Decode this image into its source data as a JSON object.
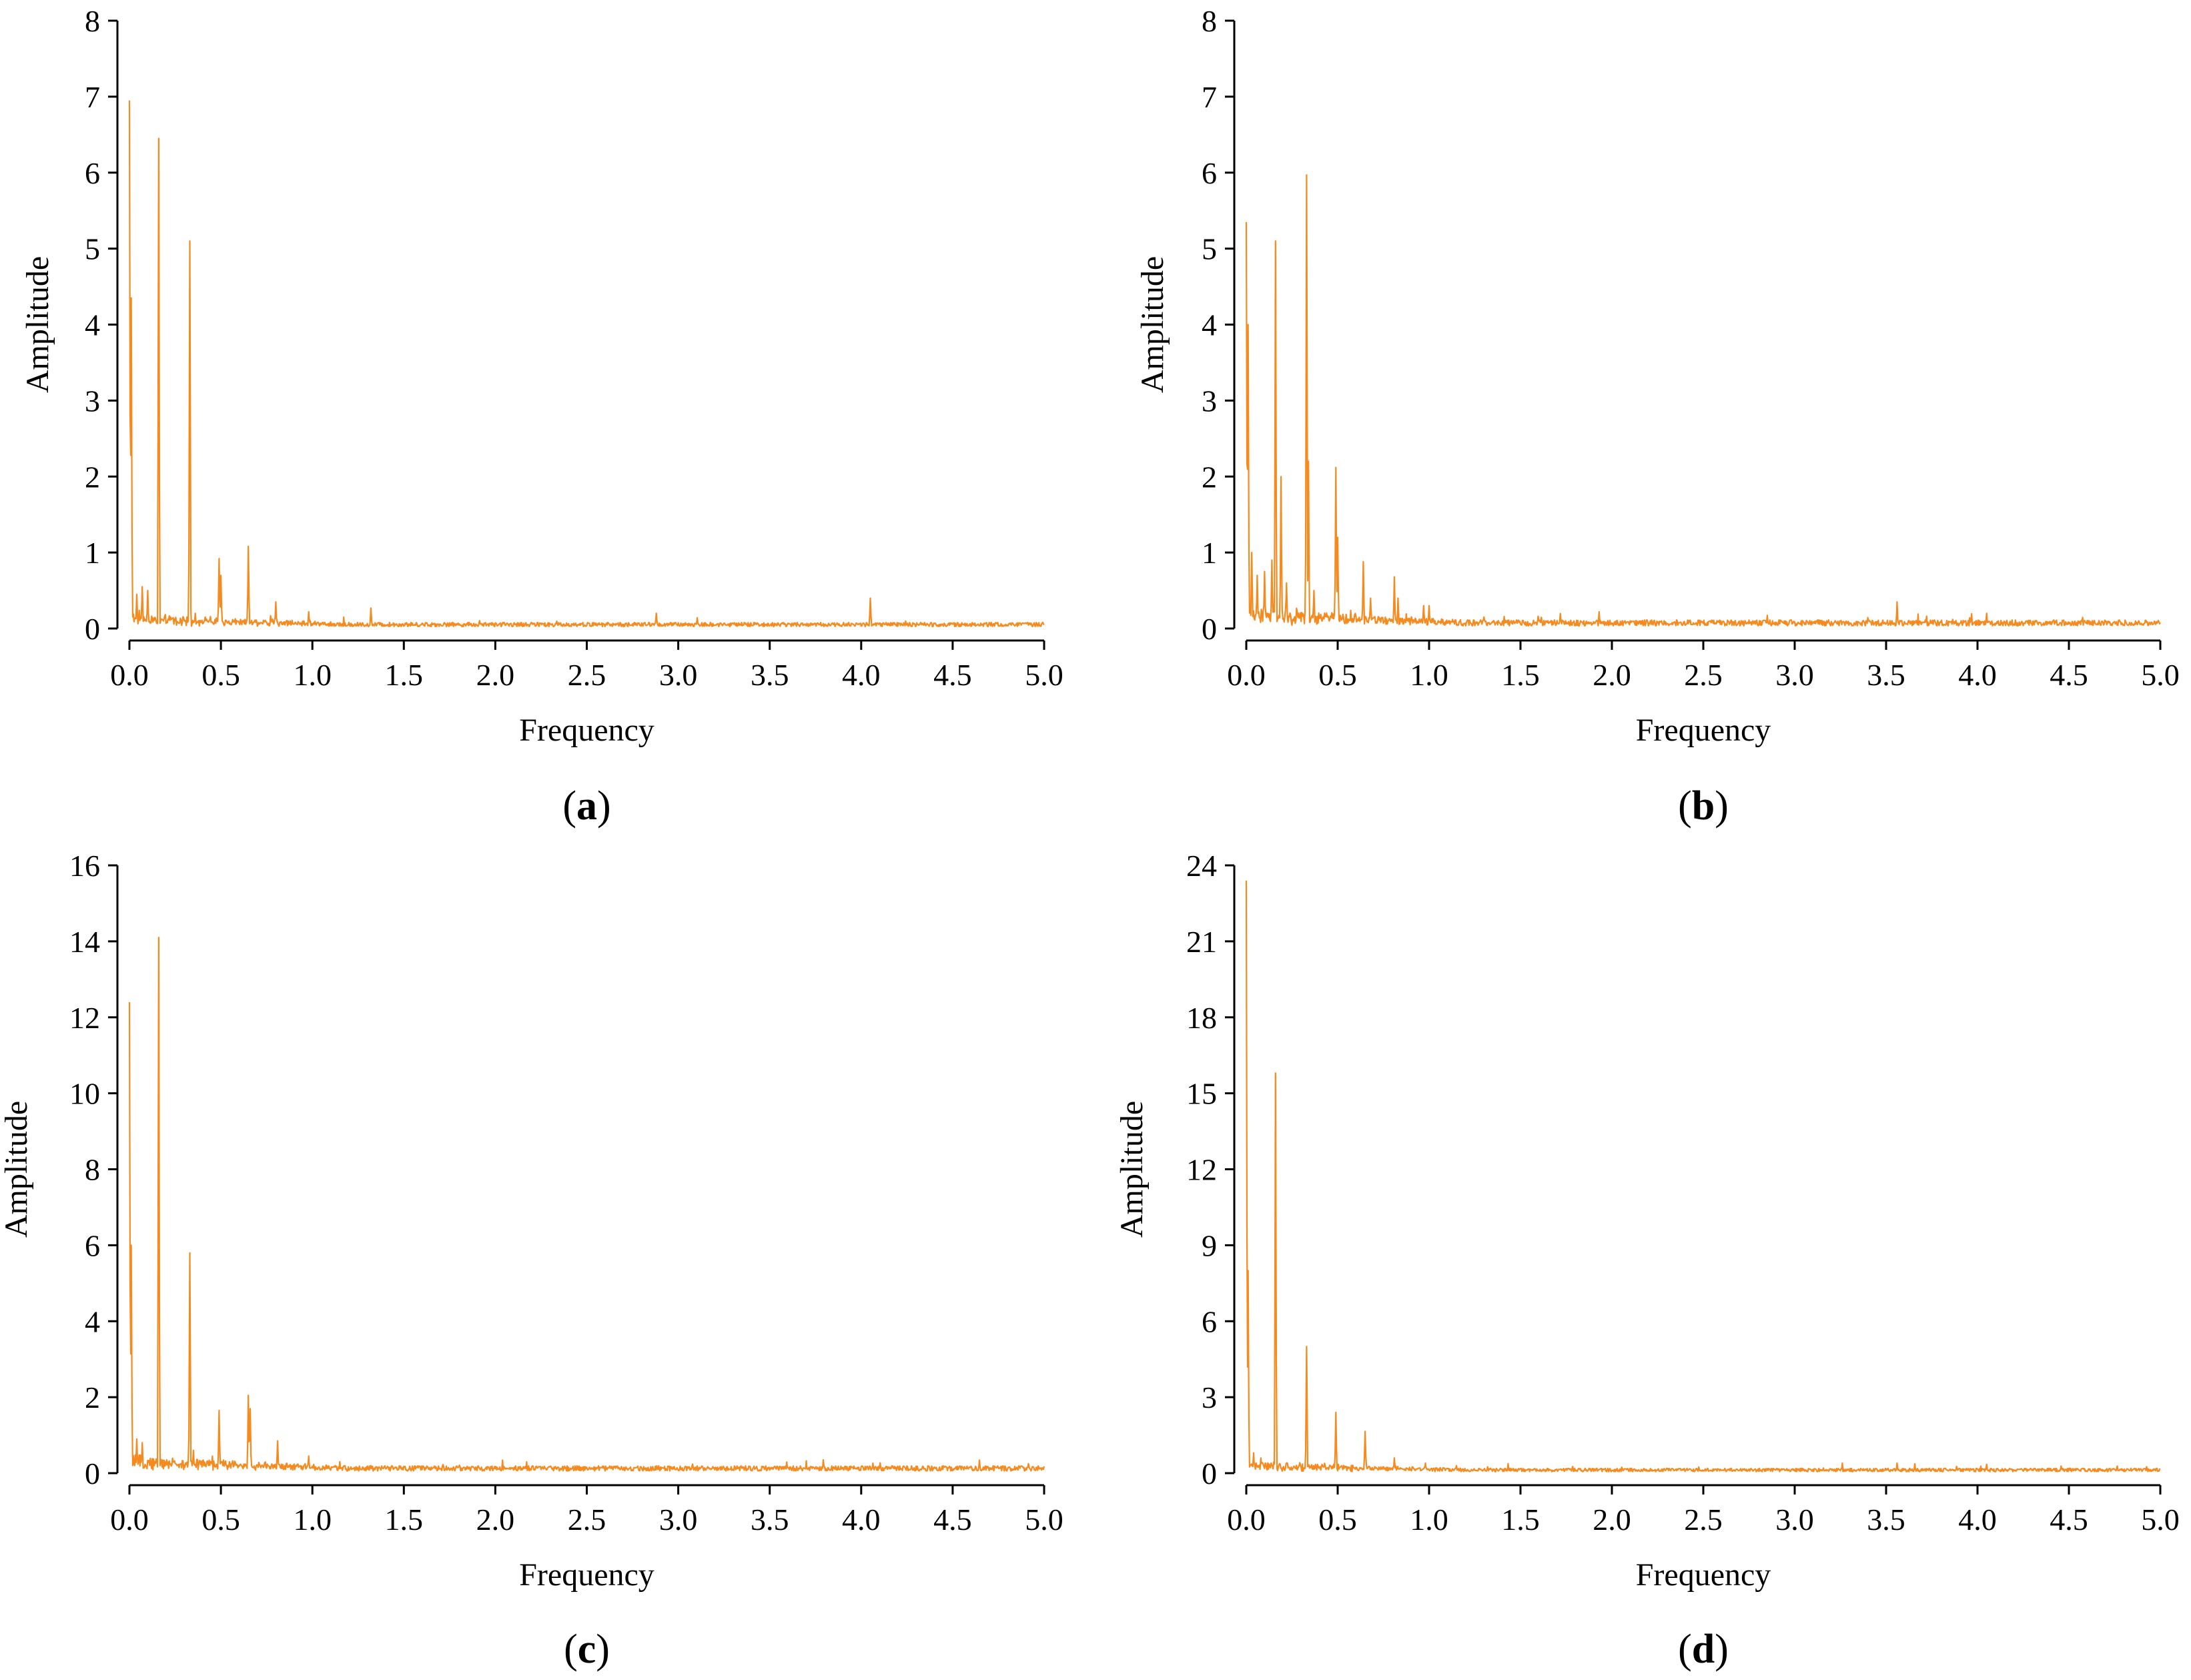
{
  "colors": {
    "series": "#f58a1f",
    "axis": "#000000"
  },
  "chart_data": [
    {
      "type": "line",
      "caption": "a",
      "xlabel": "Frequency",
      "ylabel": "Amplitude",
      "xlim": [
        0,
        5.0
      ],
      "ylim": [
        0,
        8
      ],
      "xticks": [
        "0.0",
        "0.5",
        "1.0",
        "1.5",
        "2.0",
        "2.5",
        "3.0",
        "3.5",
        "4.0",
        "4.5",
        "5.0"
      ],
      "yticks": [
        "0",
        "1",
        "2",
        "3",
        "4",
        "5",
        "6",
        "7",
        "8"
      ],
      "series": [
        {
          "baseline": 0.05,
          "peaks": [
            [
              0.0,
              6.95
            ],
            [
              0.01,
              4.35
            ],
            [
              0.04,
              0.45
            ],
            [
              0.07,
              0.55
            ],
            [
              0.1,
              0.5
            ],
            [
              0.16,
              6.45
            ],
            [
              0.33,
              5.1
            ],
            [
              0.36,
              0.2
            ],
            [
              0.49,
              0.92
            ],
            [
              0.5,
              0.7
            ],
            [
              0.65,
              1.08
            ],
            [
              0.8,
              0.35
            ],
            [
              0.98,
              0.22
            ],
            [
              1.32,
              0.27
            ],
            [
              2.88,
              0.2
            ],
            [
              4.05,
              0.4
            ]
          ]
        }
      ]
    },
    {
      "type": "line",
      "caption": "b",
      "xlabel": "Frequency",
      "ylabel": "Amplitude",
      "xlim": [
        0,
        5.0
      ],
      "ylim": [
        0,
        8
      ],
      "xticks": [
        "0.0",
        "0.5",
        "1.0",
        "1.5",
        "2.0",
        "2.5",
        "3.0",
        "3.5",
        "4.0",
        "4.5",
        "5.0"
      ],
      "yticks": [
        "0",
        "1",
        "2",
        "3",
        "4",
        "5",
        "6",
        "7",
        "8"
      ],
      "series": [
        {
          "baseline": 0.07,
          "peaks": [
            [
              0.0,
              5.35
            ],
            [
              0.01,
              4.0
            ],
            [
              0.03,
              1.0
            ],
            [
              0.06,
              0.7
            ],
            [
              0.1,
              0.75
            ],
            [
              0.14,
              0.9
            ],
            [
              0.16,
              5.1
            ],
            [
              0.19,
              2.0
            ],
            [
              0.22,
              0.6
            ],
            [
              0.33,
              5.97
            ],
            [
              0.34,
              2.2
            ],
            [
              0.37,
              0.5
            ],
            [
              0.49,
              2.12
            ],
            [
              0.5,
              1.2
            ],
            [
              0.64,
              0.88
            ],
            [
              0.68,
              0.4
            ],
            [
              0.81,
              0.68
            ],
            [
              0.83,
              0.4
            ],
            [
              0.97,
              0.3
            ],
            [
              1.0,
              0.3
            ],
            [
              1.3,
              0.15
            ],
            [
              1.93,
              0.22
            ],
            [
              3.56,
              0.35
            ],
            [
              4.05,
              0.2
            ]
          ]
        }
      ]
    },
    {
      "type": "line",
      "caption": "c",
      "xlabel": "Frequency",
      "ylabel": "Amplitude",
      "xlim": [
        0,
        5.0
      ],
      "ylim": [
        0,
        16
      ],
      "xticks": [
        "0.0",
        "0.5",
        "1.0",
        "1.5",
        "2.0",
        "2.5",
        "3.0",
        "3.5",
        "4.0",
        "4.5",
        "5.0"
      ],
      "yticks": [
        "0",
        "2",
        "4",
        "6",
        "8",
        "10",
        "12",
        "14",
        "16"
      ],
      "series": [
        {
          "baseline": 0.12,
          "peaks": [
            [
              0.0,
              12.4
            ],
            [
              0.01,
              6.0
            ],
            [
              0.04,
              0.9
            ],
            [
              0.07,
              0.8
            ],
            [
              0.16,
              14.1
            ],
            [
              0.33,
              5.8
            ],
            [
              0.35,
              0.6
            ],
            [
              0.49,
              1.65
            ],
            [
              0.65,
              2.05
            ],
            [
              0.66,
              1.7
            ],
            [
              0.81,
              0.85
            ],
            [
              0.98,
              0.45
            ],
            [
              1.15,
              0.3
            ],
            [
              1.32,
              0.2
            ]
          ]
        }
      ]
    },
    {
      "type": "line",
      "caption": "d",
      "xlabel": "Frequency",
      "ylabel": "Amplitude",
      "xlim": [
        0,
        5.0
      ],
      "ylim": [
        0,
        24
      ],
      "xticks": [
        "0.0",
        "0.5",
        "1.0",
        "1.5",
        "2.0",
        "2.5",
        "3.0",
        "3.5",
        "4.0",
        "4.5",
        "5.0"
      ],
      "yticks": [
        "0",
        "3",
        "6",
        "9",
        "12",
        "15",
        "18",
        "21",
        "24"
      ],
      "series": [
        {
          "baseline": 0.12,
          "peaks": [
            [
              0.0,
              23.4
            ],
            [
              0.01,
              8.0
            ],
            [
              0.04,
              0.8
            ],
            [
              0.08,
              0.6
            ],
            [
              0.16,
              15.8
            ],
            [
              0.33,
              5.0
            ],
            [
              0.49,
              2.4
            ],
            [
              0.65,
              1.65
            ],
            [
              0.81,
              0.6
            ],
            [
              0.98,
              0.4
            ],
            [
              1.15,
              0.3
            ],
            [
              1.32,
              0.25
            ],
            [
              3.56,
              0.4
            ],
            [
              4.05,
              0.35
            ]
          ]
        }
      ]
    }
  ]
}
